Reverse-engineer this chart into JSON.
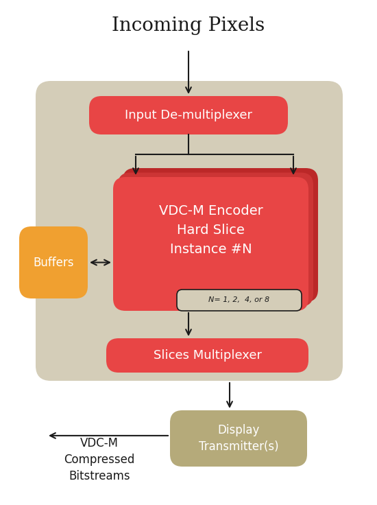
{
  "bg_color": "#ffffff",
  "inner_bg_color": "#d4cdb8",
  "red_color": "#e84545",
  "red_shadow1": "#cc3535",
  "red_shadow2": "#bb2828",
  "orange_color": "#f0a030",
  "olive_color": "#b5aa7a",
  "text_white": "#ffffff",
  "text_black": "#1a1a1a",
  "labels": {
    "incoming": "Incoming Pixels",
    "demux": "Input De-multiplexer",
    "encoder": "VDC-M Encoder\nHard Slice\nInstance #N",
    "n_label": "N= 1, 2,  4, or 8",
    "buffers": "Buffers",
    "slicesmux": "Slices Multiplexer",
    "display": "Display\nTransmitter(s)",
    "bitstreams": "VDC-M\nCompressed\nBitstreams"
  },
  "fontsizes": {
    "incoming": 20,
    "demux": 13,
    "encoder": 14,
    "n_label": 8,
    "buffers": 12,
    "slicesmux": 13,
    "display": 12,
    "bitstreams": 12
  }
}
